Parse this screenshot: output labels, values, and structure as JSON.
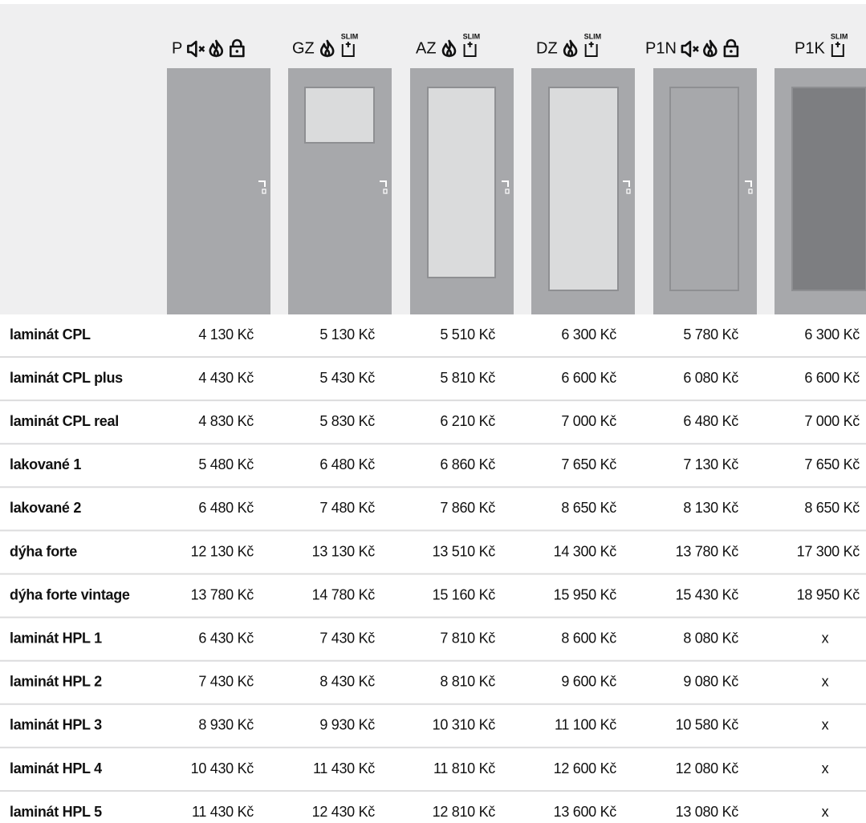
{
  "slim": "SLIM",
  "columns": [
    "P",
    "GZ",
    "AZ",
    "DZ",
    "P1N",
    "P1K"
  ],
  "rows": [
    {
      "label": "laminát CPL",
      "prices": [
        "4 130 Kč",
        "5 130 Kč",
        "5 510 Kč",
        "6 300 Kč",
        "5 780 Kč",
        "6 300 Kč"
      ]
    },
    {
      "label": "laminát CPL plus",
      "prices": [
        "4 430 Kč",
        "5 430 Kč",
        "5 810 Kč",
        "6 600 Kč",
        "6 080 Kč",
        "6 600 Kč"
      ]
    },
    {
      "label": "laminát CPL real",
      "prices": [
        "4 830 Kč",
        "5 830 Kč",
        "6 210 Kč",
        "7 000 Kč",
        "6 480 Kč",
        "7 000 Kč"
      ]
    },
    {
      "label": "lakované 1",
      "prices": [
        "5 480 Kč",
        "6 480 Kč",
        "6 860 Kč",
        "7 650 Kč",
        "7 130 Kč",
        "7 650 Kč"
      ]
    },
    {
      "label": "lakované 2",
      "prices": [
        "6 480 Kč",
        "7 480 Kč",
        "7 860 Kč",
        "8 650 Kč",
        "8 130 Kč",
        "8 650 Kč"
      ]
    },
    {
      "label": "dýha forte",
      "prices": [
        "12 130 Kč",
        "13 130 Kč",
        "13 510 Kč",
        "14 300 Kč",
        "13 780 Kč",
        "17 300 Kč"
      ]
    },
    {
      "label": "dýha forte vintage",
      "prices": [
        "13 780 Kč",
        "14 780 Kč",
        "15 160 Kč",
        "15 950 Kč",
        "15 430 Kč",
        "18 950 Kč"
      ]
    },
    {
      "label": "laminát HPL 1",
      "prices": [
        "6 430 Kč",
        "7 430 Kč",
        "7 810 Kč",
        "8 600 Kč",
        "8 080 Kč",
        "x"
      ]
    },
    {
      "label": "laminát HPL 2",
      "prices": [
        "7 430 Kč",
        "8 430 Kč",
        "8 810 Kč",
        "9 600 Kč",
        "9 080 Kč",
        "x"
      ]
    },
    {
      "label": "laminát HPL 3",
      "prices": [
        "8 930 Kč",
        "9 930 Kč",
        "10 310 Kč",
        "11 100 Kč",
        "10 580 Kč",
        "x"
      ]
    },
    {
      "label": "laminát HPL 4",
      "prices": [
        "10 430 Kč",
        "11 430 Kč",
        "11 810 Kč",
        "12 600 Kč",
        "12 080 Kč",
        "x"
      ]
    },
    {
      "label": "laminát HPL 5",
      "prices": [
        "11 430 Kč",
        "12 430 Kč",
        "12 810 Kč",
        "13 600 Kč",
        "13 080 Kč",
        "x"
      ]
    }
  ]
}
